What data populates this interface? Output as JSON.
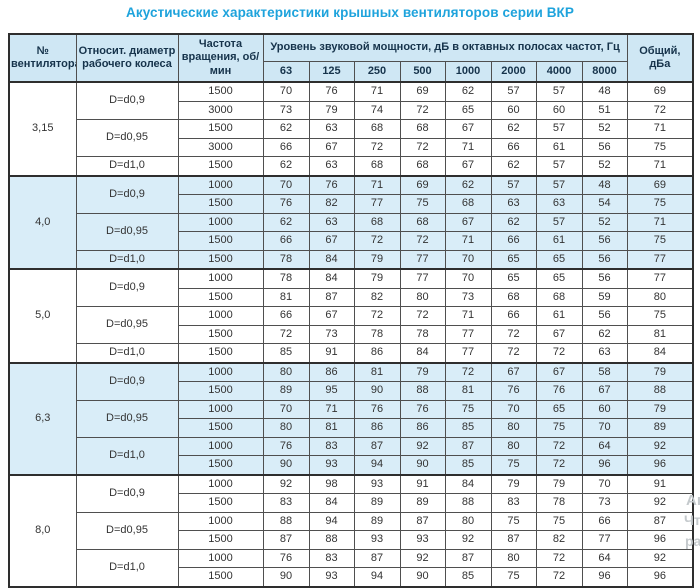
{
  "title": "Акустические характеристики крышных вентиляторов серии ВКР",
  "colors": {
    "title_blue": "#1ea3dc",
    "header_bg": "#cfe7f4",
    "band_bg": "#d9edf8",
    "border": "#4f4f4f",
    "text": "#333333"
  },
  "table": {
    "headers": {
      "fan_no": "№ вентилятора",
      "diameter": "Относит. диаметр рабочего колеса",
      "speed": "Частота вращения, об/мин",
      "spl_group": "Уровень звуковой мощности, дБ в октавных полосах частот, Гц",
      "total": "Общий, дБа",
      "frequencies": [
        "63",
        "125",
        "250",
        "500",
        "1000",
        "2000",
        "4000",
        "8000"
      ]
    },
    "groups": [
      {
        "fan": "3,15",
        "shaded": false,
        "subgroups": [
          {
            "d": "D=d0,9",
            "rows": [
              {
                "rpm": "1500",
                "levels": [
                  70,
                  76,
                  71,
                  69,
                  62,
                  57,
                  57,
                  48
                ],
                "total": 69
              },
              {
                "rpm": "3000",
                "levels": [
                  73,
                  79,
                  74,
                  72,
                  65,
                  60,
                  60,
                  51
                ],
                "total": 72
              }
            ]
          },
          {
            "d": "D=d0,95",
            "rows": [
              {
                "rpm": "1500",
                "levels": [
                  62,
                  63,
                  68,
                  68,
                  67,
                  62,
                  57,
                  52
                ],
                "total": 71
              },
              {
                "rpm": "3000",
                "levels": [
                  66,
                  67,
                  72,
                  72,
                  71,
                  66,
                  61,
                  56
                ],
                "total": 75
              }
            ]
          },
          {
            "d": "D=d1,0",
            "rows": [
              {
                "rpm": "1500",
                "levels": [
                  62,
                  63,
                  68,
                  68,
                  67,
                  62,
                  57,
                  52
                ],
                "total": 71
              }
            ]
          }
        ]
      },
      {
        "fan": "4,0",
        "shaded": true,
        "subgroups": [
          {
            "d": "D=d0,9",
            "rows": [
              {
                "rpm": "1000",
                "levels": [
                  70,
                  76,
                  71,
                  69,
                  62,
                  57,
                  57,
                  48
                ],
                "total": 69
              },
              {
                "rpm": "1500",
                "levels": [
                  76,
                  82,
                  77,
                  75,
                  68,
                  63,
                  63,
                  54
                ],
                "total": 75
              }
            ]
          },
          {
            "d": "D=d0,95",
            "rows": [
              {
                "rpm": "1000",
                "levels": [
                  62,
                  63,
                  68,
                  68,
                  67,
                  62,
                  57,
                  52
                ],
                "total": 71
              },
              {
                "rpm": "1500",
                "levels": [
                  66,
                  67,
                  72,
                  72,
                  71,
                  66,
                  61,
                  56
                ],
                "total": 75
              }
            ]
          },
          {
            "d": "D=d1,0",
            "rows": [
              {
                "rpm": "1500",
                "levels": [
                  78,
                  84,
                  79,
                  77,
                  70,
                  65,
                  65,
                  56
                ],
                "total": 77
              }
            ]
          }
        ]
      },
      {
        "fan": "5,0",
        "shaded": false,
        "subgroups": [
          {
            "d": "D=d0,9",
            "rows": [
              {
                "rpm": "1000",
                "levels": [
                  78,
                  84,
                  79,
                  77,
                  70,
                  65,
                  65,
                  56
                ],
                "total": 77
              },
              {
                "rpm": "1500",
                "levels": [
                  81,
                  87,
                  82,
                  80,
                  73,
                  68,
                  68,
                  59
                ],
                "total": 80
              }
            ]
          },
          {
            "d": "D=d0,95",
            "rows": [
              {
                "rpm": "1000",
                "levels": [
                  66,
                  67,
                  72,
                  72,
                  71,
                  66,
                  61,
                  56
                ],
                "total": 75
              },
              {
                "rpm": "1500",
                "levels": [
                  72,
                  73,
                  78,
                  78,
                  77,
                  72,
                  67,
                  62
                ],
                "total": 81
              }
            ]
          },
          {
            "d": "D=d1,0",
            "rows": [
              {
                "rpm": "1500",
                "levels": [
                  85,
                  91,
                  86,
                  84,
                  77,
                  72,
                  72,
                  63
                ],
                "total": 84
              }
            ]
          }
        ]
      },
      {
        "fan": "6,3",
        "shaded": true,
        "subgroups": [
          {
            "d": "D=d0,9",
            "rows": [
              {
                "rpm": "1000",
                "levels": [
                  80,
                  86,
                  81,
                  79,
                  72,
                  67,
                  67,
                  58
                ],
                "total": 79
              },
              {
                "rpm": "1500",
                "levels": [
                  89,
                  95,
                  90,
                  88,
                  81,
                  76,
                  76,
                  67
                ],
                "total": 88
              }
            ]
          },
          {
            "d": "D=d0,95",
            "rows": [
              {
                "rpm": "1000",
                "levels": [
                  70,
                  71,
                  76,
                  76,
                  75,
                  70,
                  65,
                  60
                ],
                "total": 79
              },
              {
                "rpm": "1500",
                "levels": [
                  80,
                  81,
                  86,
                  86,
                  85,
                  80,
                  75,
                  70
                ],
                "total": 89
              }
            ]
          },
          {
            "d": "D=d1,0",
            "rows": [
              {
                "rpm": "1000",
                "levels": [
                  76,
                  83,
                  87,
                  92,
                  87,
                  80,
                  72,
                  64
                ],
                "total": 92
              },
              {
                "rpm": "1500",
                "levels": [
                  90,
                  93,
                  94,
                  90,
                  85,
                  75,
                  72,
                  96
                ],
                "total": 96
              }
            ]
          }
        ]
      },
      {
        "fan": "8,0",
        "shaded": false,
        "subgroups": [
          {
            "d": "D=d0,9",
            "rows": [
              {
                "rpm": "1000",
                "levels": [
                  92,
                  98,
                  93,
                  91,
                  84,
                  79,
                  79,
                  70
                ],
                "total": 91
              },
              {
                "rpm": "1500",
                "levels": [
                  83,
                  84,
                  89,
                  89,
                  88,
                  83,
                  78,
                  73
                ],
                "total": 92
              }
            ]
          },
          {
            "d": "D=d0,95",
            "rows": [
              {
                "rpm": "1000",
                "levels": [
                  88,
                  94,
                  89,
                  87,
                  80,
                  75,
                  75,
                  66
                ],
                "total": 87
              },
              {
                "rpm": "1500",
                "levels": [
                  87,
                  88,
                  93,
                  93,
                  92,
                  87,
                  82,
                  77
                ],
                "total": 96
              }
            ]
          },
          {
            "d": "D=d1,0",
            "rows": [
              {
                "rpm": "1000",
                "levels": [
                  76,
                  83,
                  87,
                  92,
                  87,
                  80,
                  72,
                  64
                ],
                "total": 92
              },
              {
                "rpm": "1500",
                "levels": [
                  90,
                  93,
                  94,
                  90,
                  85,
                  75,
                  72,
                  96
                ],
                "total": 96
              }
            ]
          }
        ]
      }
    ]
  },
  "watermark": {
    "lines": [
      "Ак",
      "Чта",
      "ра"
    ]
  }
}
